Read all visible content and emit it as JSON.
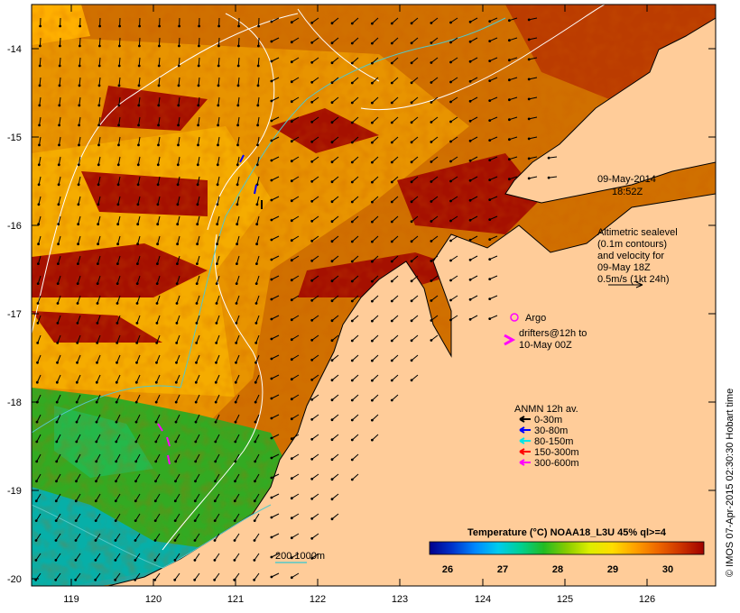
{
  "map": {
    "lat_ticks": [
      "-14",
      "-15",
      "-16",
      "-17",
      "-18",
      "-19",
      "-20"
    ],
    "lon_ticks": [
      "119",
      "120",
      "121",
      "122",
      "123",
      "124",
      "125",
      "126"
    ],
    "date_line1": "09-May-2014",
    "date_line2": "18:52Z",
    "altimetry": {
      "line1": "Altimetric sealevel",
      "line2": "(0.1m contours)",
      "line3": "and velocity for",
      "line4": "09-May 18Z",
      "line5": "0.5m/s (1kt 24h)"
    },
    "argo_label": "Argo",
    "drifters_line1": "drifters@12h to",
    "drifters_line2": "10-May 00Z",
    "anmn": {
      "title": "ANMN 12h av.",
      "items": [
        {
          "label": "0-30m",
          "color": "#000000"
        },
        {
          "label": "30-80m",
          "color": "#0000ff"
        },
        {
          "label": "80-150m",
          "color": "#00e5e5"
        },
        {
          "label": "150-300m",
          "color": "#ff0000"
        },
        {
          "label": "300-600m",
          "color": "#ff00ff"
        }
      ]
    },
    "bathymetry_label": "200  1000m",
    "colorbar": {
      "title": "Temperature (°C) NOAA18_L3U 45% ql>=4",
      "tick_labels": [
        "26",
        "27",
        "28",
        "29",
        "30"
      ],
      "colors": [
        "#00008b",
        "#0033cc",
        "#0088ff",
        "#00ccee",
        "#00d090",
        "#22bb22",
        "#88cc00",
        "#ddee00",
        "#ffdd00",
        "#ffa000",
        "#ee6600",
        "#cc3300",
        "#a00000"
      ]
    },
    "credit": "© IMOS 07-Apr-2015 02:30:30 Hobart time",
    "colors": {
      "land": "#ffcc99",
      "ocean_dark_red": "#a51000",
      "ocean_orange": "#d76f00",
      "ocean_yellow": "#ffd000",
      "ocean_green": "#33bb22",
      "ocean_cyan": "#00aacc"
    }
  }
}
